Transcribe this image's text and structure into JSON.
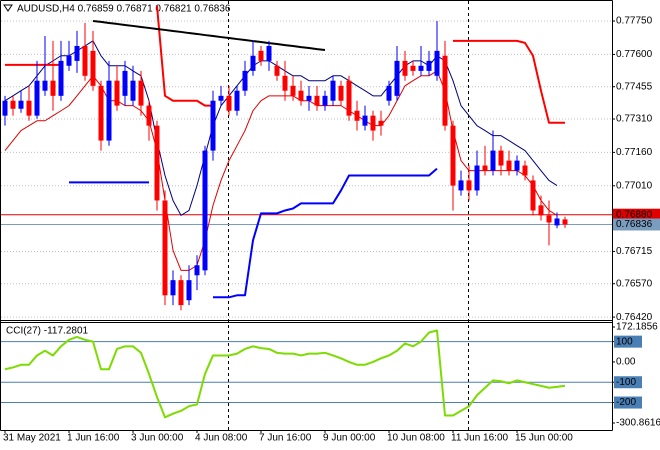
{
  "chart_data": [
    {
      "type": "candlestick",
      "title": "AUDUSD,H4  0.76859 0.76871 0.76821 0.76836",
      "bull_color": "#0000ff",
      "bear_color": "#ff0000",
      "grid": true,
      "categories": [
        "31 May 2021",
        null,
        null,
        null,
        null,
        null,
        null,
        null,
        "1 Jun 16:00",
        null,
        null,
        null,
        null,
        null,
        null,
        null,
        "3 Jun 00:00",
        null,
        null,
        null,
        null,
        null,
        null,
        null,
        "4 Jun 08:00",
        null,
        null,
        null,
        null,
        null,
        null,
        null,
        "7 Jun 16:00",
        null,
        null,
        null,
        null,
        null,
        null,
        null,
        "9 Jun 00:00",
        null,
        null,
        null,
        null,
        null,
        null,
        null,
        "10 Jun 08:00",
        null,
        null,
        null,
        null,
        null,
        null,
        null,
        "11 Jun 16:00",
        null,
        null,
        null,
        null,
        null,
        null,
        null,
        "15 Jun 00:00",
        null,
        null,
        null,
        null,
        null,
        null
      ],
      "open": [
        0.77325,
        0.77392,
        0.77356,
        0.77392,
        0.77325,
        0.77437,
        0.77482,
        0.77414,
        0.77549,
        0.77571,
        0.77638,
        0.77616,
        0.77459,
        0.77213,
        0.77482,
        0.77414,
        0.77392,
        0.77482,
        0.7737,
        0.7728,
        0.76944,
        0.76518,
        0.76586,
        0.76496,
        0.76608,
        0.7663,
        0.77168,
        0.77392,
        0.77414,
        0.77347,
        0.77437,
        0.77526,
        0.77616,
        0.77571,
        0.77549,
        0.77504,
        0.77459,
        0.77437,
        0.77392,
        0.77414,
        0.7737,
        0.77392,
        0.77459,
        0.77482,
        0.77347,
        0.7728,
        0.77325,
        0.77302,
        0.77392,
        0.77414,
        0.77571,
        0.77549,
        0.77526,
        0.77526,
        0.77504,
        0.77594,
        0.7728,
        0.76989,
        0.77034,
        0.76989,
        0.77101,
        0.77078,
        0.77168,
        0.77123,
        0.77078,
        0.77101,
        0.77034,
        0.76922,
        0.76877,
        0.76832,
        0.76859
      ],
      "high": [
        0.77414,
        0.77414,
        0.77437,
        0.77459,
        0.77571,
        0.77683,
        0.77661,
        0.77661,
        0.77661,
        0.77706,
        0.77741,
        0.77706,
        0.77482,
        0.77571,
        0.77549,
        0.77571,
        0.77549,
        0.77526,
        0.77392,
        0.77302,
        0.76989,
        0.7663,
        0.76608,
        0.76653,
        0.76698,
        0.7719,
        0.77437,
        0.77459,
        0.77459,
        0.77459,
        0.77571,
        0.77661,
        0.77638,
        0.77661,
        0.77571,
        0.77571,
        0.77504,
        0.77482,
        0.77459,
        0.77459,
        0.77437,
        0.77504,
        0.77482,
        0.77504,
        0.77392,
        0.7737,
        0.77347,
        0.77347,
        0.77482,
        0.77638,
        0.77616,
        0.77571,
        0.77638,
        0.77616,
        0.7775,
        0.77661,
        0.77302,
        0.77078,
        0.77101,
        0.77168,
        0.7719,
        0.77258,
        0.7719,
        0.77168,
        0.77146,
        0.77123,
        0.77056,
        0.76966,
        0.76944,
        0.7689,
        0.76871
      ],
      "low": [
        0.7728,
        0.77325,
        0.77338,
        0.77302,
        0.77311,
        0.77414,
        0.77347,
        0.77392,
        0.77526,
        0.77517,
        0.77482,
        0.77437,
        0.77168,
        0.7719,
        0.77347,
        0.7737,
        0.7737,
        0.77325,
        0.77213,
        0.76899,
        0.76474,
        0.76474,
        0.76451,
        0.76474,
        0.76541,
        0.76608,
        0.77123,
        0.7737,
        0.77325,
        0.77325,
        0.77414,
        0.77504,
        0.77549,
        0.77526,
        0.77482,
        0.77392,
        0.77392,
        0.7737,
        0.77347,
        0.77347,
        0.77347,
        0.7737,
        0.7737,
        0.77302,
        0.77258,
        0.77258,
        0.77213,
        0.77235,
        0.7737,
        0.77392,
        0.77482,
        0.77504,
        0.77504,
        0.77504,
        0.77482,
        0.77258,
        0.76899,
        0.76966,
        0.76944,
        0.76966,
        0.77056,
        0.77056,
        0.77056,
        0.77056,
        0.77056,
        0.77034,
        0.76877,
        0.76854,
        0.76742,
        0.76819,
        0.76821
      ],
      "close": [
        0.77392,
        0.77356,
        0.77392,
        0.77325,
        0.77482,
        0.77482,
        0.77414,
        0.77571,
        0.77594,
        0.77638,
        0.77504,
        0.77459,
        0.77213,
        0.77482,
        0.7737,
        0.77526,
        0.77482,
        0.7737,
        0.7728,
        0.76944,
        0.76518,
        0.76586,
        0.76474,
        0.76586,
        0.76653,
        0.77168,
        0.77392,
        0.77414,
        0.77347,
        0.77437,
        0.77526,
        0.77594,
        0.77571,
        0.77638,
        0.77504,
        0.77437,
        0.77414,
        0.77392,
        0.77414,
        0.7737,
        0.77414,
        0.77482,
        0.77392,
        0.77325,
        0.77302,
        0.77325,
        0.77258,
        0.7728,
        0.77459,
        0.77571,
        0.77504,
        0.77526,
        0.77549,
        0.77571,
        0.77616,
        0.7728,
        0.77011,
        0.77034,
        0.76989,
        0.77101,
        0.77078,
        0.77168,
        0.77101,
        0.77078,
        0.77123,
        0.77056,
        0.76899,
        0.76877,
        0.76845,
        0.76863,
        0.76836
      ],
      "series": [
        {
          "color": "#000080",
          "line_width": 1,
          "values": [
            0.77392,
            0.77414,
            0.77437,
            0.77459,
            0.77504,
            0.77549,
            0.77571,
            0.77594,
            0.77594,
            0.77616,
            0.77638,
            0.77661,
            0.77594,
            0.77549,
            0.77549,
            0.77549,
            0.77526,
            0.77504,
            0.77392,
            0.77213,
            0.77056,
            0.76944,
            0.76877,
            0.76899,
            0.77011,
            0.77146,
            0.7728,
            0.7737,
            0.77414,
            0.77459,
            0.77504,
            0.77549,
            0.77571,
            0.77571,
            0.77549,
            0.77526,
            0.77504,
            0.77504,
            0.77482,
            0.77482,
            0.77482,
            0.77504,
            0.77504,
            0.77482,
            0.77459,
            0.77437,
            0.77414,
            0.77414,
            0.77459,
            0.77504,
            0.77549,
            0.77571,
            0.77571,
            0.77549,
            0.77594,
            0.77571,
            0.77482,
            0.7737,
            0.77325,
            0.7728,
            0.77258,
            0.77235,
            0.77235,
            0.77213,
            0.7719,
            0.77168,
            0.77123,
            0.77078,
            0.77034,
            0.77011,
            null
          ]
        },
        {
          "color": "#e00000",
          "line_width": 1,
          "values": [
            0.77168,
            0.77213,
            0.77258,
            0.7728,
            0.77302,
            0.77302,
            0.77325,
            0.77347,
            0.7737,
            0.77414,
            0.77459,
            0.77504,
            0.77459,
            0.77392,
            0.77392,
            0.7737,
            0.7737,
            0.77347,
            0.77302,
            0.77168,
            0.76944,
            0.7672,
            0.7663,
            0.7663,
            0.76653,
            0.76765,
            0.76922,
            0.77034,
            0.77123,
            0.7719,
            0.77258,
            0.77347,
            0.77392,
            0.77414,
            0.77414,
            0.77414,
            0.77414,
            0.77392,
            0.77392,
            0.7737,
            0.7737,
            0.7737,
            0.7737,
            0.77347,
            0.77325,
            0.77302,
            0.7728,
            0.7728,
            0.77325,
            0.77392,
            0.77459,
            0.77482,
            0.77504,
            0.77504,
            0.77526,
            0.77437,
            0.77258,
            0.77123,
            0.77078,
            0.77078,
            0.77078,
            0.77078,
            0.77078,
            0.77078,
            0.77078,
            0.77056,
            0.77011,
            0.76944,
            0.76899,
            0.76877,
            null
          ]
        },
        {
          "color": "#0000ff",
          "line_width": 2,
          "values": [
            null,
            null,
            null,
            null,
            null,
            null,
            null,
            null,
            0.77025,
            0.77025,
            0.77025,
            0.77025,
            0.77025,
            0.77025,
            0.77025,
            0.77025,
            0.77025,
            0.77025,
            0.77025,
            null,
            null,
            null,
            null,
            null,
            null,
            null,
            0.76509,
            0.76509,
            0.76509,
            0.76518,
            0.76518,
            0.76765,
            0.76886,
            0.76886,
            0.76886,
            0.76899,
            0.76908,
            0.76931,
            0.76931,
            0.76931,
            0.76931,
            0.76931,
            0.76989,
            0.77056,
            0.77056,
            0.77056,
            0.77056,
            0.77056,
            0.77056,
            0.77056,
            0.77056,
            0.77056,
            0.77056,
            0.77056,
            0.77087,
            null,
            null,
            null,
            null,
            null,
            null,
            null,
            null,
            null,
            null,
            null,
            null,
            null,
            null,
            null,
            null
          ]
        },
        {
          "color": "#ff0000",
          "line_width": 2,
          "values": [
            0.77553,
            0.77553,
            0.77553,
            0.77553,
            0.77553,
            0.77553,
            0.77553,
            0.77553,
            null,
            null,
            null,
            null,
            null,
            null,
            null,
            null,
            null,
            null,
            null,
            0.77818,
            0.77414,
            0.77392,
            0.77392,
            0.77392,
            0.77392,
            0.7737,
            0.7737,
            null,
            null,
            null,
            null,
            null,
            null,
            null,
            null,
            null,
            null,
            null,
            null,
            null,
            null,
            null,
            null,
            null,
            null,
            null,
            null,
            null,
            null,
            null,
            null,
            null,
            null,
            null,
            null,
            null,
            0.77661,
            0.77661,
            0.77661,
            0.77661,
            0.77661,
            0.77661,
            0.77661,
            0.77661,
            0.77661,
            0.77652,
            0.77594,
            0.77437,
            0.77293,
            0.77293,
            0.77293
          ]
        },
        {
          "color": "#000000",
          "line_width": 2,
          "values": [
            null,
            null,
            null,
            null,
            null,
            null,
            null,
            null,
            null,
            null,
            null,
            0.7775,
            0.77746,
            0.77741,
            0.77737,
            0.77732,
            0.77728,
            0.77723,
            0.77719,
            0.77714,
            0.7771,
            0.77705,
            0.77701,
            0.77696,
            0.77692,
            0.77687,
            0.77683,
            0.77678,
            0.77674,
            0.77669,
            0.77665,
            0.7766,
            0.77656,
            0.77651,
            0.77647,
            0.77642,
            0.77638,
            0.77633,
            0.77629,
            0.77624,
            0.7762,
            null,
            null,
            null,
            null,
            null,
            null,
            null,
            null,
            null,
            null,
            null,
            null,
            null,
            null,
            null,
            null,
            null,
            null,
            null,
            null,
            null,
            null,
            null,
            null,
            null,
            null,
            null,
            null,
            null,
            null
          ]
        }
      ],
      "price_lines": [
        {
          "value": 0.7688,
          "label": "0.76880",
          "color": "#e00000"
        },
        {
          "value": 0.76836,
          "label": "0.76836",
          "color": "#7a9cbf"
        }
      ],
      "ylim": [
        0.76416,
        0.7784
      ],
      "yticks": [
        {
          "value": 0.7775,
          "label": "0.77750"
        },
        {
          "value": 0.776,
          "label": "0.77600"
        },
        {
          "value": 0.77455,
          "label": "0.77455"
        },
        {
          "value": 0.7731,
          "label": "0.77310"
        },
        {
          "value": 0.7716,
          "label": "0.77160"
        },
        {
          "value": 0.7701,
          "label": "0.77010"
        },
        {
          "value": 0.76715,
          "label": "0.76715"
        },
        {
          "value": 0.7657,
          "label": "0.76570"
        },
        {
          "value": 0.7642,
          "label": "0.76420"
        }
      ]
    },
    {
      "type": "line",
      "title": "CCI(27) -117.2801",
      "series": [
        {
          "color": "#7cdc00",
          "line_width": 2,
          "values": [
            -36,
            -27,
            -14,
            -14,
            32,
            55,
            32,
            77,
            109,
            123,
            109,
            100,
            -36,
            -36,
            64,
            77,
            77,
            45,
            -59,
            -173,
            -273,
            -255,
            -241,
            -218,
            -209,
            -59,
            32,
            32,
            32,
            41,
            64,
            77,
            68,
            64,
            45,
            41,
            41,
            32,
            41,
            41,
            45,
            32,
            18,
            0,
            -14,
            -14,
            0,
            18,
            32,
            55,
            91,
            77,
            100,
            145,
            155,
            -264,
            -264,
            -241,
            -218,
            -164,
            -127,
            -91,
            -95,
            -105,
            -91,
            -100,
            -109,
            -118,
            -127,
            -123,
            -117.2801
          ]
        }
      ],
      "levels": [
        100,
        -100,
        -200
      ],
      "level_color": "#4a7fb5",
      "ylim": [
        -300.8616,
        172.1856
      ],
      "yticks": [
        172.1856,
        100,
        {
          "value": 0,
          "label": "0.00"
        },
        -100,
        -200,
        -300.8616
      ]
    }
  ]
}
